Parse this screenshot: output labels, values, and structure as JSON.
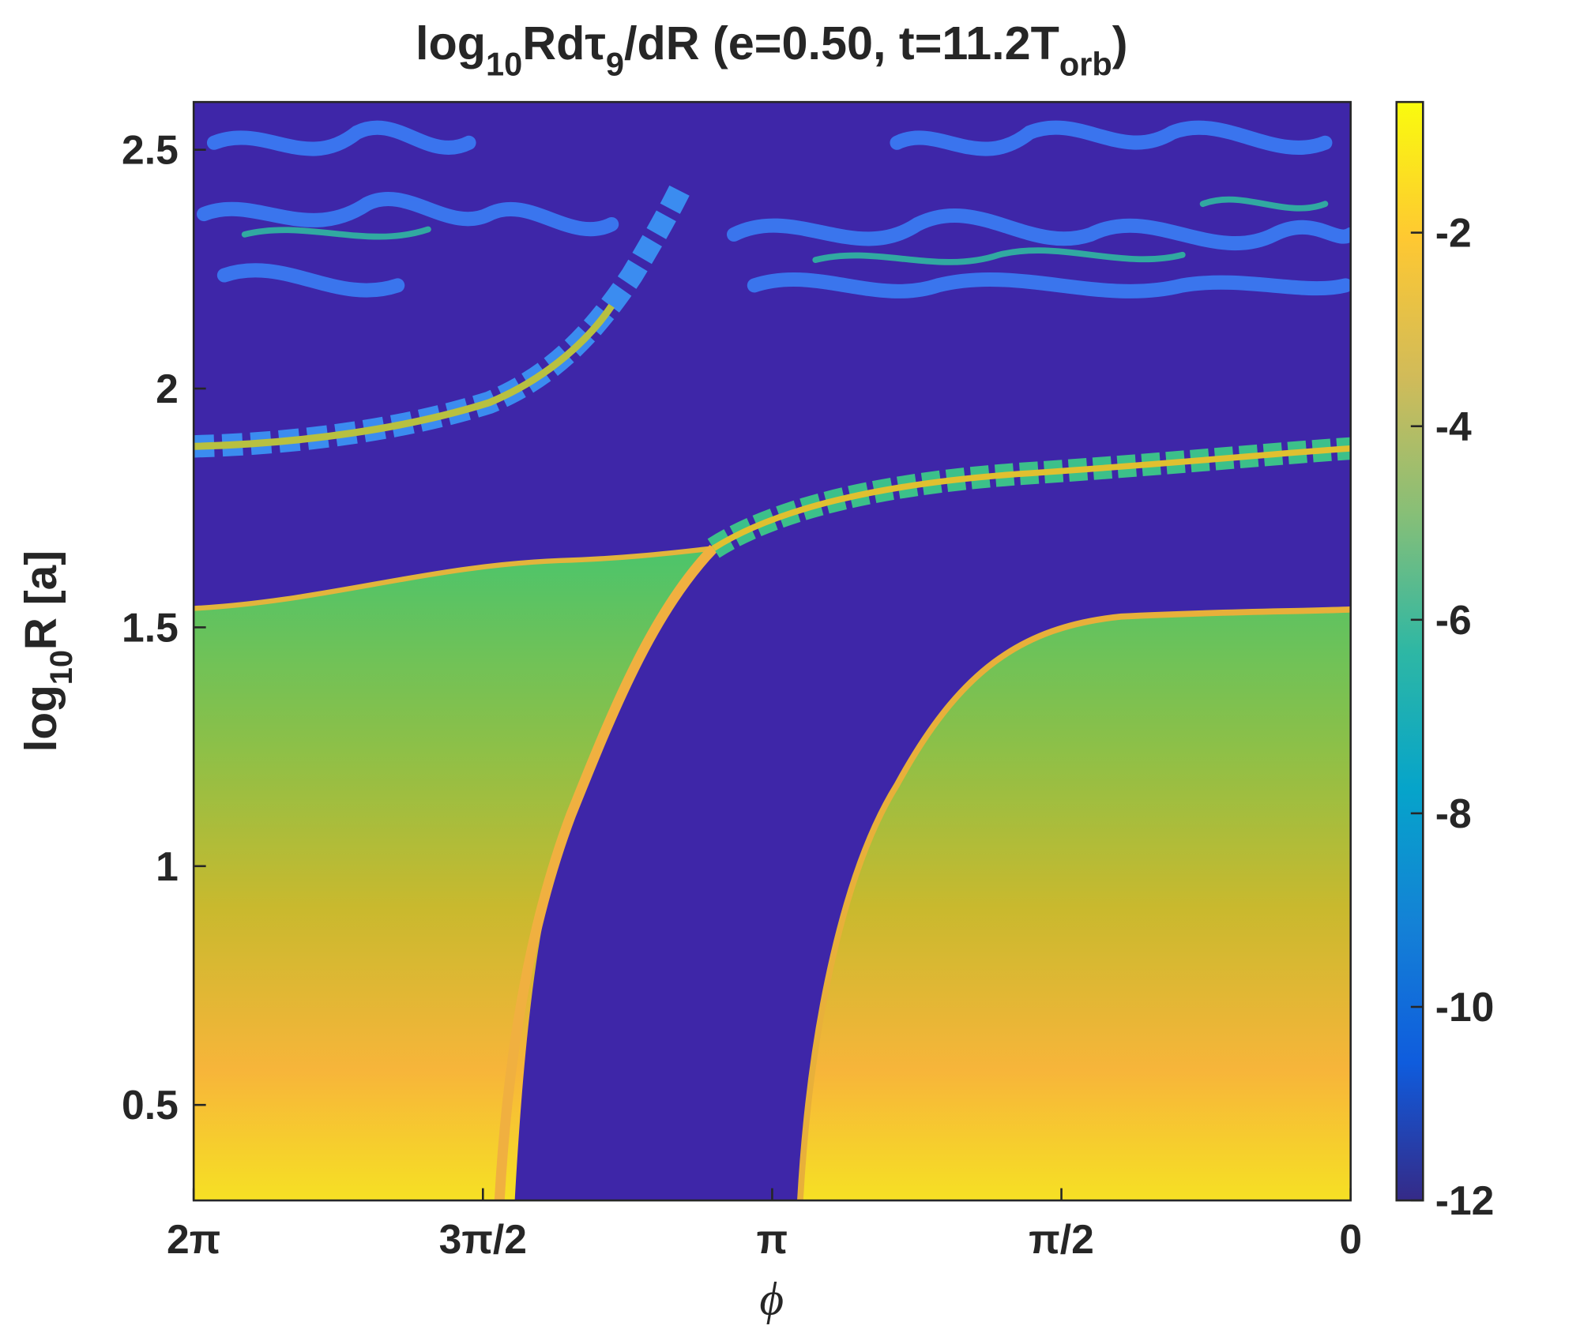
{
  "chart_data": {
    "type": "heatmap",
    "title": [
      "log",
      "10",
      "Rdτ",
      "9",
      "/dR (e=0.50, t=11.2T",
      "orb",
      ")"
    ],
    "xlabel": "ϕ",
    "ylabel": [
      "log",
      "10",
      "R [a]"
    ],
    "xlim": [
      0,
      6.2832
    ],
    "xdir": "reverse",
    "xticks": [
      {
        "value": 6.2832,
        "label": "2π"
      },
      {
        "value": 4.7124,
        "label": "3π/2"
      },
      {
        "value": 3.1416,
        "label": "π"
      },
      {
        "value": 1.5708,
        "label": "π/2"
      },
      0
    ],
    "ylim": [
      0.3,
      2.6
    ],
    "yticks": [
      0.5,
      1,
      1.5,
      2,
      2.5
    ],
    "clim": [
      -12,
      -0.65
    ],
    "cticks": [
      -12,
      -10,
      -8,
      -6,
      -4,
      -2
    ],
    "colormap": [
      "#352a87",
      "#0f5cdd",
      "#1481d6",
      "#06a4ca",
      "#2eb7a4",
      "#87bf77",
      "#d1bb59",
      "#fec832",
      "#f9fb0e"
    ]
  }
}
